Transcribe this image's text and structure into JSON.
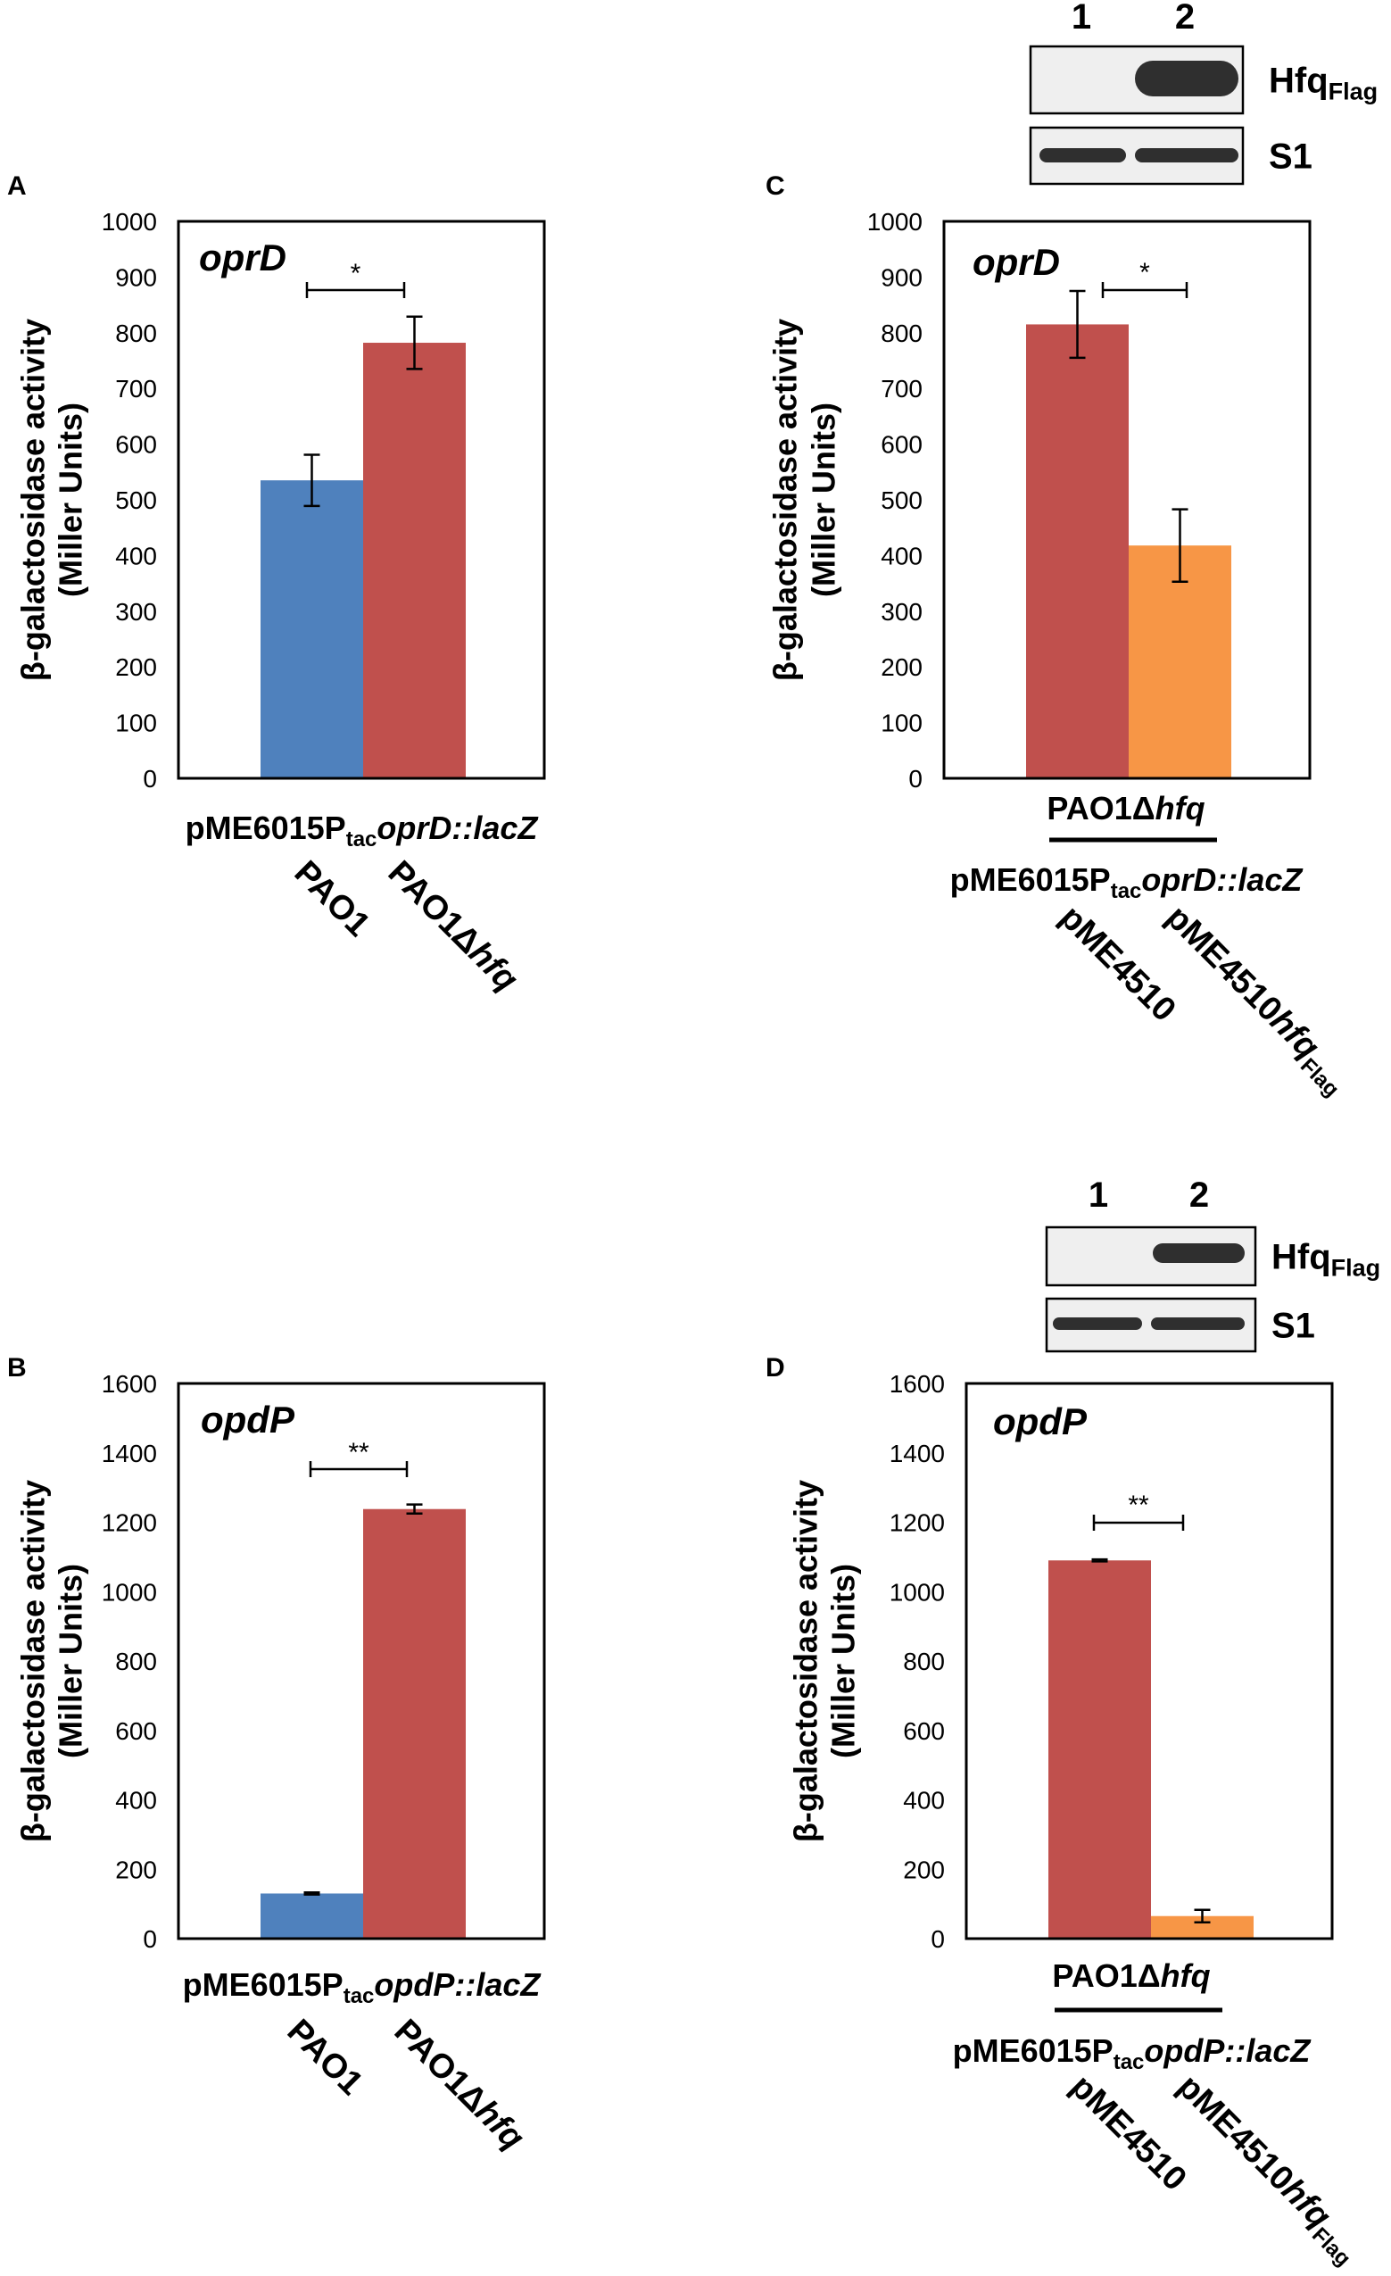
{
  "chart_data": [
    {
      "panel": "A",
      "type": "bar",
      "gene": "oprD",
      "ylabel_line1": "β-galactosidase activity",
      "ylabel_line2": "(Miller Units)",
      "ylim": [
        0,
        1000
      ],
      "yticks": [
        0,
        100,
        200,
        300,
        400,
        500,
        600,
        700,
        800,
        900,
        1000
      ],
      "plasmid_label": {
        "prefix": "pME6015P",
        "sub": "tac",
        "suffix": "oprD::lacZ"
      },
      "strain_label": null,
      "categories": [
        {
          "main": "PAO1",
          "italic": "",
          "sub": ""
        },
        {
          "main": "PAO1Δ",
          "italic": "hfq",
          "sub": ""
        }
      ],
      "values": [
        535,
        782
      ],
      "errors": [
        46,
        47
      ],
      "colors": [
        "#4F81BD",
        "#C0504D"
      ],
      "significance": "*",
      "blot": null
    },
    {
      "panel": "B",
      "type": "bar",
      "gene": "opdP",
      "ylabel_line1": "β-galactosidase activity",
      "ylabel_line2": "(Miller Units)",
      "ylim": [
        0,
        1600
      ],
      "yticks": [
        0,
        200,
        400,
        600,
        800,
        1000,
        1200,
        1400,
        1600
      ],
      "plasmid_label": {
        "prefix": "pME6015P",
        "sub": "tac",
        "suffix": "opdP::lacZ"
      },
      "strain_label": null,
      "categories": [
        {
          "main": "PAO1",
          "italic": "",
          "sub": ""
        },
        {
          "main": "PAO1Δ",
          "italic": "hfq",
          "sub": ""
        }
      ],
      "values": [
        130,
        1238
      ],
      "errors": [
        3,
        13
      ],
      "colors": [
        "#4F81BD",
        "#C0504D"
      ],
      "significance": "**",
      "blot": null
    },
    {
      "panel": "C",
      "type": "bar",
      "gene": "oprD",
      "ylabel_line1": "β-galactosidase activity",
      "ylabel_line2": "(Miller Units)",
      "ylim": [
        0,
        1000
      ],
      "yticks": [
        0,
        100,
        200,
        300,
        400,
        500,
        600,
        700,
        800,
        900,
        1000
      ],
      "plasmid_label": {
        "prefix": "pME6015P",
        "sub": "tac",
        "suffix": "oprD::lacZ"
      },
      "strain_label": {
        "main": "PAO1Δ",
        "italic": "hfq"
      },
      "categories": [
        {
          "main": "pME4510",
          "italic": "",
          "sub": ""
        },
        {
          "main": "pME4510",
          "italic": "hfq",
          "sub": "Flag"
        }
      ],
      "values": [
        815,
        418
      ],
      "errors": [
        60,
        65
      ],
      "colors": [
        "#C0504D",
        "#F79646"
      ],
      "significance": "*",
      "blot": {
        "lanes": [
          "1",
          "2"
        ],
        "rows": [
          {
            "main": "Hfq",
            "sub": "Flag"
          },
          {
            "main": "S1",
            "sub": ""
          }
        ]
      }
    },
    {
      "panel": "D",
      "type": "bar",
      "gene": "opdP",
      "ylabel_line1": "β-galactosidase activity",
      "ylabel_line2": "(Miller Units)",
      "ylim": [
        0,
        1600
      ],
      "yticks": [
        0,
        200,
        400,
        600,
        800,
        1000,
        1200,
        1400,
        1600
      ],
      "plasmid_label": {
        "prefix": "pME6015P",
        "sub": "tac",
        "suffix": "opdP::lacZ"
      },
      "strain_label": {
        "main": "PAO1Δ",
        "italic": "hfq"
      },
      "categories": [
        {
          "main": "pME4510",
          "italic": "",
          "sub": ""
        },
        {
          "main": "pME4510",
          "italic": "hfq",
          "sub": "Flag"
        }
      ],
      "values": [
        1090,
        65
      ],
      "errors": [
        3,
        18
      ],
      "colors": [
        "#C0504D",
        "#F79646"
      ],
      "significance": "**",
      "blot": {
        "lanes": [
          "1",
          "2"
        ],
        "rows": [
          {
            "main": "Hfq",
            "sub": "Flag"
          },
          {
            "main": "S1",
            "sub": ""
          }
        ]
      }
    }
  ]
}
